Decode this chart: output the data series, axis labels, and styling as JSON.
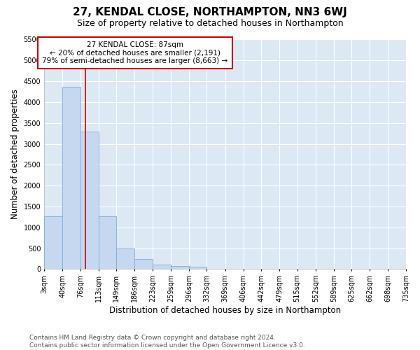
{
  "title": "27, KENDAL CLOSE, NORTHAMPTON, NN3 6WJ",
  "subtitle": "Size of property relative to detached houses in Northampton",
  "xlabel": "Distribution of detached houses by size in Northampton",
  "ylabel": "Number of detached properties",
  "bar_color": "#c5d8f0",
  "bar_edge_color": "#7aadd4",
  "background_color": "#dde8f5",
  "grid_color": "#ffffff",
  "vline_x": 87,
  "vline_color": "#cc0000",
  "annotation_text": "27 KENDAL CLOSE: 87sqm\n← 20% of detached houses are smaller (2,191)\n79% of semi-detached houses are larger (8,663) →",
  "annotation_box_color": "#ffffff",
  "annotation_border_color": "#cc0000",
  "bin_edges": [
    3,
    40,
    76,
    113,
    149,
    186,
    223,
    259,
    296,
    332,
    369,
    406,
    442,
    479,
    515,
    552,
    589,
    625,
    662,
    698,
    735
  ],
  "bin_values": [
    1270,
    4360,
    3300,
    1270,
    490,
    240,
    100,
    75,
    55,
    0,
    0,
    0,
    0,
    0,
    0,
    0,
    0,
    0,
    0,
    0
  ],
  "ylim": [
    0,
    5500
  ],
  "yticks": [
    0,
    500,
    1000,
    1500,
    2000,
    2500,
    3000,
    3500,
    4000,
    4500,
    5000,
    5500
  ],
  "footer": "Contains HM Land Registry data © Crown copyright and database right 2024.\nContains public sector information licensed under the Open Government Licence v3.0.",
  "title_fontsize": 11,
  "subtitle_fontsize": 9,
  "xlabel_fontsize": 8.5,
  "ylabel_fontsize": 8.5,
  "tick_fontsize": 7,
  "footer_fontsize": 6.5
}
